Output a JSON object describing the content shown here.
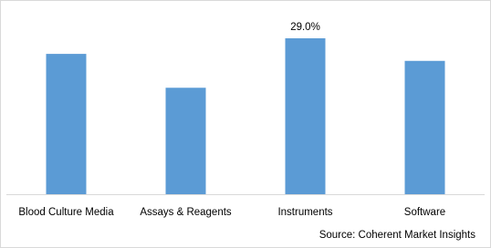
{
  "chart_data": {
    "type": "bar",
    "categories": [
      "Blood Culture Media",
      "Assays & Reagents",
      "Instruments",
      "Software"
    ],
    "values": [
      26.1,
      19.8,
      29.0,
      24.8
    ],
    "value_labels": [
      null,
      null,
      "29.0%",
      null
    ],
    "color": "#5b9bd5",
    "source": "Source: Coherent Market Insights"
  }
}
